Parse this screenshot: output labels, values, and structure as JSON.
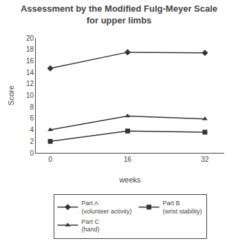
{
  "chart_data": {
    "type": "line",
    "title": "Assessment by the Modified Fulg-Meyer Scale\nfor upper limbs",
    "xlabel": "weeks",
    "ylabel": "Score",
    "x": [
      0,
      16,
      32
    ],
    "series": [
      {
        "name": "Part A\n(volunteer activity)",
        "color": "#333333",
        "marker": "diamond",
        "line_style": "solid",
        "values": [
          14.7,
          17.5,
          17.4
        ]
      },
      {
        "name": "Part B\n(wrist stability)",
        "color": "#333333",
        "marker": "square",
        "line_style": "solid",
        "values": [
          2.0,
          3.8,
          3.6
        ]
      },
      {
        "name": "Part C\n(hand)",
        "color": "#333333",
        "marker": "triangle-up",
        "line_style": "solid",
        "values": [
          4.0,
          6.4,
          5.9
        ]
      }
    ],
    "xlim": [
      -3,
      36
    ],
    "xticks": [
      0,
      16,
      32
    ],
    "ylim": [
      0,
      20
    ],
    "yticks": [
      0,
      2,
      4,
      6,
      8,
      10,
      12,
      14,
      16,
      18,
      20
    ],
    "grid": false,
    "legend": "bottom"
  }
}
